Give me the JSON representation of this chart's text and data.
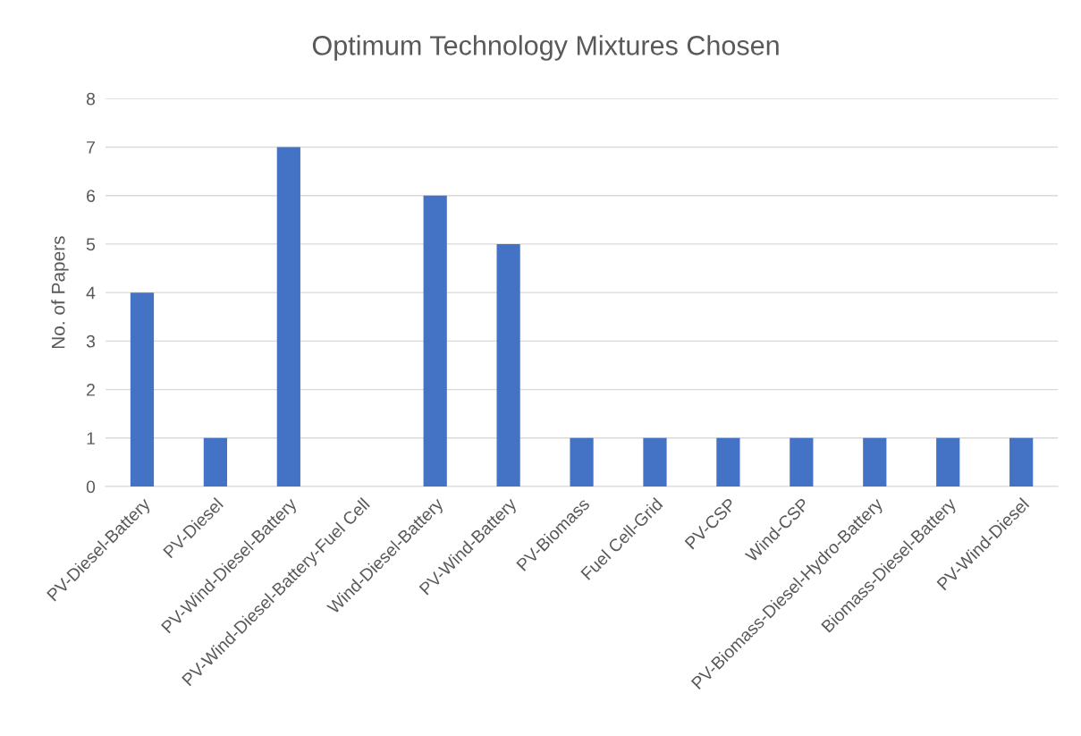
{
  "chart_data": {
    "type": "bar",
    "title": "Optimum Technology Mixtures Chosen",
    "ylabel": "No. of Papers",
    "categories": [
      "PV-Diesel-Battery",
      "PV-Diesel",
      "PV-Wind-Diesel-Battery",
      "PV-Wind-Diesel-Battery-Fuel Cell",
      "Wind-Diesel-Battery",
      "PV-Wind-Battery",
      "PV-Biomass",
      "Fuel Cell-Grid",
      "PV-CSP",
      "Wind-CSP",
      "PV-Biomass-Diesel-Hydro-Battery",
      "Biomass-Diesel-Battery",
      "PV-Wind-Diesel"
    ],
    "values": [
      4,
      1,
      7,
      0,
      6,
      5,
      1,
      1,
      1,
      1,
      1,
      1,
      1
    ],
    "color": "#4472c4",
    "ylim": [
      0,
      8
    ],
    "yticks": [
      0,
      1,
      2,
      3,
      4,
      5,
      6,
      7,
      8
    ],
    "grid": "y",
    "legend": false
  }
}
